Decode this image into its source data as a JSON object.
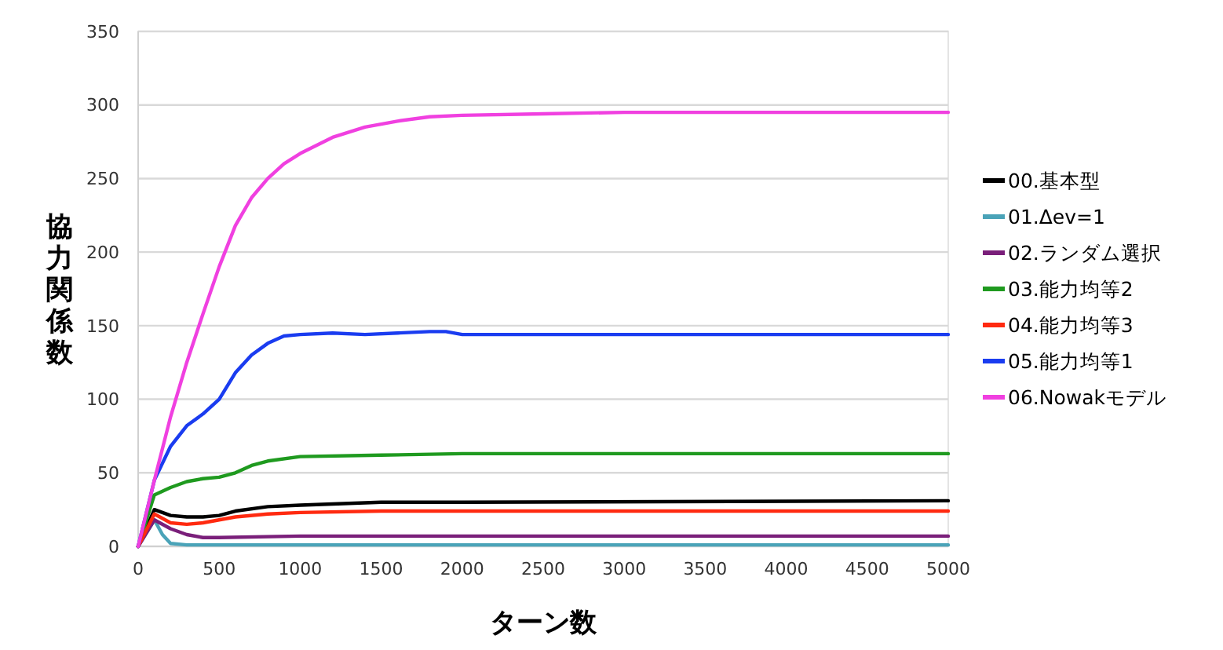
{
  "chart_data": {
    "type": "line",
    "xlabel": "ターン数",
    "ylabel": "協力関係数",
    "xlim": [
      0,
      5000
    ],
    "xticks": [
      0,
      500,
      1000,
      1500,
      2000,
      2500,
      3000,
      3500,
      4000,
      4500,
      5000
    ],
    "ylim": [
      0,
      350
    ],
    "yticks": [
      0,
      50,
      100,
      150,
      200,
      250,
      300,
      350
    ],
    "grid": "y",
    "legend": "right",
    "series": [
      {
        "name": "00.基本型",
        "color": "#000000",
        "x": [
          0,
          100,
          200,
          300,
          400,
          500,
          600,
          800,
          1000,
          1500,
          2000,
          5000
        ],
        "values": [
          0,
          25,
          21,
          20,
          20,
          21,
          24,
          27,
          28,
          30,
          30,
          31
        ]
      },
      {
        "name": "01.Δev=1",
        "color": "#4aa3b8",
        "x": [
          0,
          100,
          150,
          200,
          300,
          5000
        ],
        "values": [
          0,
          18,
          8,
          2,
          1,
          1
        ]
      },
      {
        "name": "02.ランダム選択",
        "color": "#7a1f7a",
        "x": [
          0,
          100,
          200,
          300,
          400,
          500,
          1000,
          5000
        ],
        "values": [
          0,
          18,
          12,
          8,
          6,
          6,
          7,
          7
        ]
      },
      {
        "name": "03.能力均等2",
        "color": "#1f9a1f",
        "x": [
          0,
          100,
          200,
          300,
          400,
          500,
          600,
          700,
          800,
          1000,
          1500,
          2000,
          5000
        ],
        "values": [
          0,
          35,
          40,
          44,
          46,
          47,
          50,
          55,
          58,
          61,
          62,
          63,
          63
        ]
      },
      {
        "name": "04.能力均等3",
        "color": "#ff2a10",
        "x": [
          0,
          100,
          200,
          300,
          400,
          500,
          600,
          800,
          1000,
          1500,
          2000,
          5000
        ],
        "values": [
          0,
          22,
          16,
          15,
          16,
          18,
          20,
          22,
          23,
          24,
          24,
          24
        ]
      },
      {
        "name": "05.能力均等1",
        "color": "#1a3cf0",
        "x": [
          0,
          100,
          200,
          300,
          400,
          500,
          600,
          700,
          800,
          900,
          1000,
          1200,
          1400,
          1600,
          1800,
          1900,
          2000,
          2500,
          5000
        ],
        "values": [
          0,
          45,
          68,
          82,
          90,
          100,
          118,
          130,
          138,
          143,
          144,
          145,
          144,
          145,
          146,
          146,
          144,
          144,
          144
        ]
      },
      {
        "name": "06.Nowakモデル",
        "color": "#f040e0",
        "x": [
          0,
          100,
          200,
          300,
          400,
          500,
          600,
          700,
          800,
          900,
          1000,
          1200,
          1400,
          1600,
          1800,
          2000,
          2500,
          3000,
          5000
        ],
        "values": [
          0,
          45,
          88,
          125,
          158,
          190,
          218,
          237,
          250,
          260,
          267,
          278,
          285,
          289,
          292,
          293,
          294,
          295,
          295
        ]
      }
    ]
  }
}
